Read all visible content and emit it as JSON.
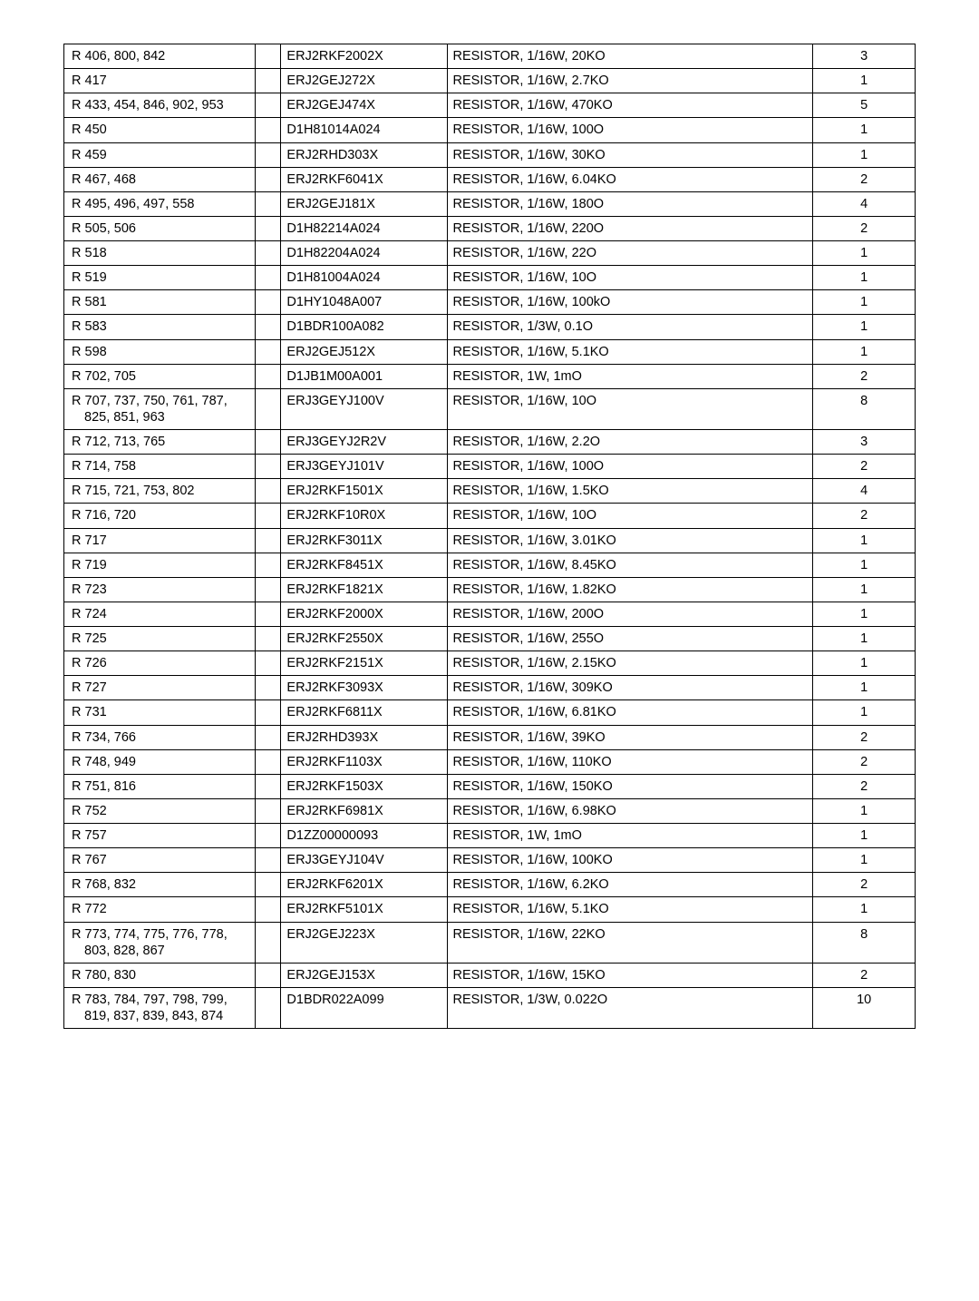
{
  "rows": [
    {
      "ref": [
        "R 406, 800, 842"
      ],
      "part": "ERJ2RKF2002X",
      "desc": "RESISTOR, 1/16W, 20KO",
      "qty": "3"
    },
    {
      "ref": [
        "R 417"
      ],
      "part": "ERJ2GEJ272X",
      "desc": "RESISTOR, 1/16W, 2.7KO",
      "qty": "1"
    },
    {
      "ref": [
        "R 433, 454, 846, 902, 953"
      ],
      "part": "ERJ2GEJ474X",
      "desc": "RESISTOR, 1/16W, 470KO",
      "qty": "5"
    },
    {
      "ref": [
        "R 450"
      ],
      "part": "D1H81014A024",
      "desc": "RESISTOR, 1/16W, 100O",
      "qty": "1"
    },
    {
      "ref": [
        "R 459"
      ],
      "part": "ERJ2RHD303X",
      "desc": "RESISTOR, 1/16W, 30KO",
      "qty": "1"
    },
    {
      "ref": [
        "R 467, 468"
      ],
      "part": "ERJ2RKF6041X",
      "desc": "RESISTOR, 1/16W, 6.04KO",
      "qty": "2"
    },
    {
      "ref": [
        "R 495, 496, 497, 558"
      ],
      "part": "ERJ2GEJ181X",
      "desc": "RESISTOR, 1/16W, 180O",
      "qty": "4"
    },
    {
      "ref": [
        "R 505, 506"
      ],
      "part": "D1H82214A024",
      "desc": "RESISTOR, 1/16W, 220O",
      "qty": "2"
    },
    {
      "ref": [
        "R 518"
      ],
      "part": "D1H82204A024",
      "desc": "RESISTOR, 1/16W, 22O",
      "qty": "1"
    },
    {
      "ref": [
        "R 519"
      ],
      "part": "D1H81004A024",
      "desc": "RESISTOR, 1/16W, 10O",
      "qty": "1"
    },
    {
      "ref": [
        "R 581"
      ],
      "part": "D1HY1048A007",
      "desc": "RESISTOR, 1/16W, 100kO",
      "qty": "1"
    },
    {
      "ref": [
        "R 583"
      ],
      "part": "D1BDR100A082",
      "desc": "RESISTOR, 1/3W, 0.1O",
      "qty": "1"
    },
    {
      "ref": [
        "R 598"
      ],
      "part": "ERJ2GEJ512X",
      "desc": "RESISTOR, 1/16W, 5.1KO",
      "qty": "1"
    },
    {
      "ref": [
        "R 702, 705"
      ],
      "part": "D1JB1M00A001",
      "desc": "RESISTOR,  1W, 1mO",
      "qty": "2"
    },
    {
      "ref": [
        "R 707, 737, 750, 761, 787,",
        "825, 851, 963"
      ],
      "part": "ERJ3GEYJ100V",
      "desc": "RESISTOR, 1/16W, 10O",
      "qty": "8"
    },
    {
      "ref": [
        "R 712, 713, 765"
      ],
      "part": "ERJ3GEYJ2R2V",
      "desc": "RESISTOR, 1/16W, 2.2O",
      "qty": "3"
    },
    {
      "ref": [
        "R 714, 758"
      ],
      "part": "ERJ3GEYJ101V",
      "desc": "RESISTOR, 1/16W, 100O",
      "qty": "2"
    },
    {
      "ref": [
        "R 715, 721, 753, 802"
      ],
      "part": "ERJ2RKF1501X",
      "desc": "RESISTOR, 1/16W, 1.5KO",
      "qty": "4"
    },
    {
      "ref": [
        "R 716, 720"
      ],
      "part": "ERJ2RKF10R0X",
      "desc": "RESISTOR, 1/16W, 10O",
      "qty": "2"
    },
    {
      "ref": [
        "R 717"
      ],
      "part": "ERJ2RKF3011X",
      "desc": "RESISTOR, 1/16W, 3.01KO",
      "qty": "1"
    },
    {
      "ref": [
        "R 719"
      ],
      "part": "ERJ2RKF8451X",
      "desc": "RESISTOR, 1/16W, 8.45KO",
      "qty": "1"
    },
    {
      "ref": [
        "R 723"
      ],
      "part": "ERJ2RKF1821X",
      "desc": "RESISTOR, 1/16W, 1.82KO",
      "qty": "1"
    },
    {
      "ref": [
        "R 724"
      ],
      "part": "ERJ2RKF2000X",
      "desc": "RESISTOR, 1/16W, 200O",
      "qty": "1"
    },
    {
      "ref": [
        "R 725"
      ],
      "part": "ERJ2RKF2550X",
      "desc": "RESISTOR, 1/16W, 255O",
      "qty": "1"
    },
    {
      "ref": [
        "R 726"
      ],
      "part": "ERJ2RKF2151X",
      "desc": "RESISTOR, 1/16W, 2.15KO",
      "qty": "1"
    },
    {
      "ref": [
        "R 727"
      ],
      "part": "ERJ2RKF3093X",
      "desc": "RESISTOR, 1/16W, 309KO",
      "qty": "1"
    },
    {
      "ref": [
        "R 731"
      ],
      "part": "ERJ2RKF6811X",
      "desc": "RESISTOR, 1/16W, 6.81KO",
      "qty": "1"
    },
    {
      "ref": [
        "R 734, 766"
      ],
      "part": "ERJ2RHD393X",
      "desc": "RESISTOR, 1/16W, 39KO",
      "qty": "2"
    },
    {
      "ref": [
        "R 748, 949"
      ],
      "part": "ERJ2RKF1103X",
      "desc": "RESISTOR, 1/16W, 110KO",
      "qty": "2"
    },
    {
      "ref": [
        "R 751, 816"
      ],
      "part": "ERJ2RKF1503X",
      "desc": "RESISTOR, 1/16W, 150KO",
      "qty": "2"
    },
    {
      "ref": [
        "R 752"
      ],
      "part": "ERJ2RKF6981X",
      "desc": "RESISTOR, 1/16W, 6.98KO",
      "qty": "1"
    },
    {
      "ref": [
        "R 757"
      ],
      "part": "D1ZZ00000093",
      "desc": "RESISTOR, 1W, 1mO",
      "qty": "1"
    },
    {
      "ref": [
        "R 767"
      ],
      "part": "ERJ3GEYJ104V",
      "desc": "RESISTOR, 1/16W, 100KO",
      "qty": "1"
    },
    {
      "ref": [
        "R 768, 832"
      ],
      "part": "ERJ2RKF6201X",
      "desc": "RESISTOR, 1/16W, 6.2KO",
      "qty": "2"
    },
    {
      "ref": [
        "R 772"
      ],
      "part": "ERJ2RKF5101X",
      "desc": "RESISTOR, 1/16W, 5.1KO",
      "qty": "1"
    },
    {
      "ref": [
        "R 773, 774, 775, 776, 778,",
        "803, 828, 867"
      ],
      "part": "ERJ2GEJ223X",
      "desc": "RESISTOR, 1/16W, 22KO",
      "qty": "8"
    },
    {
      "ref": [
        "R 780, 830"
      ],
      "part": "ERJ2GEJ153X",
      "desc": "RESISTOR, 1/16W, 15KO",
      "qty": "2"
    },
    {
      "ref": [
        "R 783, 784, 797, 798, 799,",
        "819, 837, 839, 843, 874"
      ],
      "part": "D1BDR022A099",
      "desc": "RESISTOR, 1/3W, 0.022O",
      "qty": "10"
    }
  ]
}
